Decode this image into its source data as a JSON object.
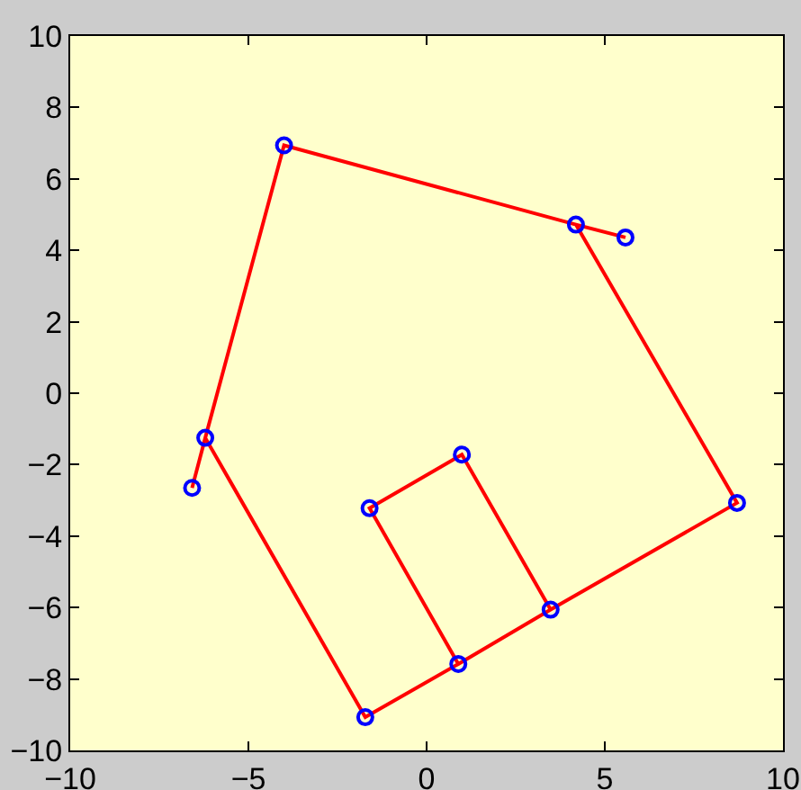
{
  "chart_data": {
    "type": "line",
    "xlim": [
      -10,
      10
    ],
    "ylim": [
      -10,
      10
    ],
    "xticks": [
      -10,
      -5,
      0,
      5,
      10
    ],
    "yticks": [
      -10,
      -8,
      -6,
      -4,
      -2,
      0,
      2,
      4,
      6,
      8,
      10
    ],
    "grid": false,
    "series": [
      {
        "color": "#ff0000",
        "marker": "none",
        "line_style": "solid",
        "x": [
          -6.58,
          -6.21,
          -4.0,
          4.19,
          5.58,
          4.19,
          8.71,
          3.48,
          0.99,
          -1.6,
          0.89,
          3.48,
          0.89,
          -1.72,
          -6.21
        ],
        "values": [
          -2.65,
          -1.25,
          6.94,
          4.72,
          4.36,
          4.72,
          -3.07,
          -6.06,
          -1.72,
          -3.22,
          -7.58,
          -6.06,
          -7.58,
          -9.07,
          -1.25
        ]
      },
      {
        "type": "scatter",
        "color": "#0000ff",
        "marker": "circle",
        "x": [
          -6.58,
          -6.21,
          -4.0,
          4.19,
          5.58,
          8.71,
          3.48,
          0.99,
          -1.6,
          0.89,
          -1.72
        ],
        "values": [
          -2.65,
          -1.25,
          6.94,
          4.72,
          4.36,
          -3.07,
          -6.06,
          -1.72,
          -3.22,
          -7.58,
          -9.07
        ]
      }
    ]
  }
}
